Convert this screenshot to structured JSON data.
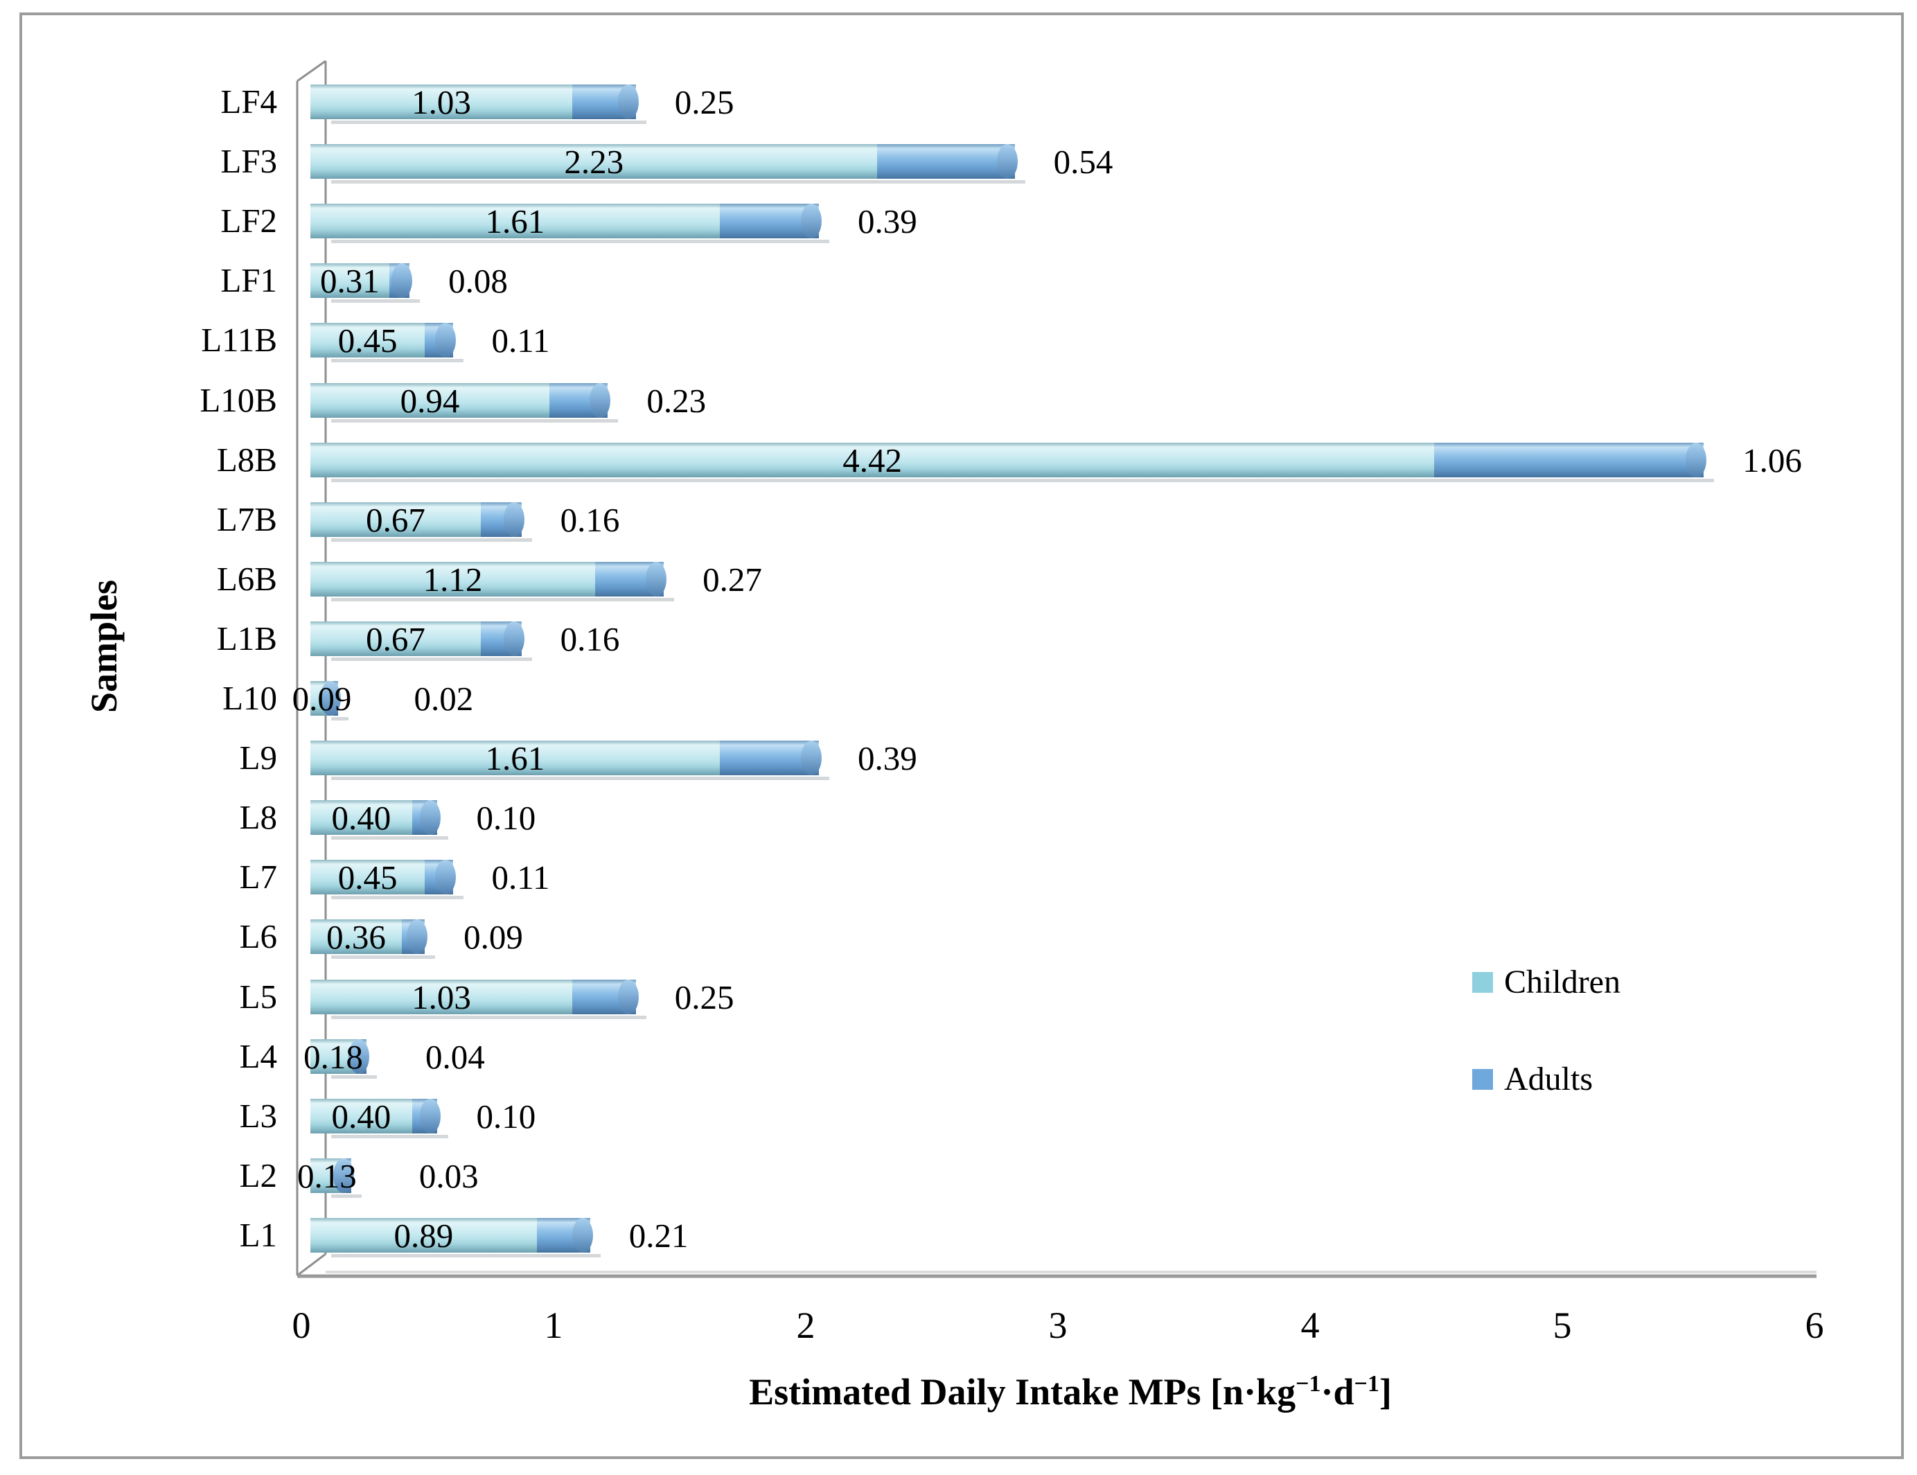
{
  "chart_data": {
    "type": "bar",
    "orientation": "horizontal",
    "stacked": true,
    "style": "3d-cylinder",
    "categories_top_to_bottom": [
      "LF4",
      "LF3",
      "LF2",
      "LF1",
      "L11B",
      "L10B",
      "L8B",
      "L7B",
      "L6B",
      "L1B",
      "L10",
      "L9",
      "L8",
      "L7",
      "L6",
      "L5",
      "L4",
      "L3",
      "L2",
      "L1"
    ],
    "series": [
      {
        "name": "Children",
        "color": "#8FD0DE",
        "values": [
          1.03,
          2.23,
          1.61,
          0.31,
          0.45,
          0.94,
          4.42,
          0.67,
          1.12,
          0.67,
          0.09,
          1.61,
          0.4,
          0.45,
          0.36,
          1.03,
          0.18,
          0.4,
          0.13,
          0.89
        ],
        "labels": [
          "1.03",
          "2.23",
          "1.61",
          "0.31",
          "0.45",
          "0.94",
          "4.42",
          "0.67",
          "1.12",
          "0.67",
          "0.09",
          "1.61",
          "0.40",
          "0.45",
          "0.36",
          "1.03",
          "0.18",
          "0.40",
          "0.13",
          "0.89"
        ]
      },
      {
        "name": "Adults",
        "color": "#6FA8DC",
        "values": [
          0.25,
          0.54,
          0.39,
          0.08,
          0.11,
          0.23,
          1.06,
          0.16,
          0.27,
          0.16,
          0.02,
          0.39,
          0.1,
          0.11,
          0.09,
          0.25,
          0.04,
          0.1,
          0.03,
          0.21
        ],
        "labels": [
          "0.25",
          "0.54",
          "0.39",
          "0.08",
          "0.11",
          "0.23",
          "1.06",
          "0.16",
          "0.27",
          "0.16",
          "0.02",
          "0.39",
          "0.10",
          "0.11",
          "0.09",
          "0.25",
          "0.04",
          "0.10",
          "0.03",
          "0.21"
        ]
      }
    ],
    "xlabel": "Estimated Daily Intake MPs [n·kg−1·d−1]",
    "ylabel": "Samples",
    "xlim": [
      0,
      6
    ],
    "xticks": [
      "0",
      "1",
      "2",
      "3",
      "4",
      "5",
      "6"
    ],
    "grid": false,
    "data_labels": true,
    "legend_position": "right-middle"
  },
  "x_axis": {
    "title_main": "Estimated Daily Intake MPs [n·kg",
    "title_sup1": "−1",
    "title_mid": "·d",
    "title_sup2": "−1",
    "title_end": "]"
  },
  "y_axis": {
    "title": "Samples"
  },
  "legend": {
    "items": [
      {
        "label": "Children",
        "color": "#8FD0DE"
      },
      {
        "label": "Adults",
        "color": "#6FA8DC"
      }
    ]
  }
}
